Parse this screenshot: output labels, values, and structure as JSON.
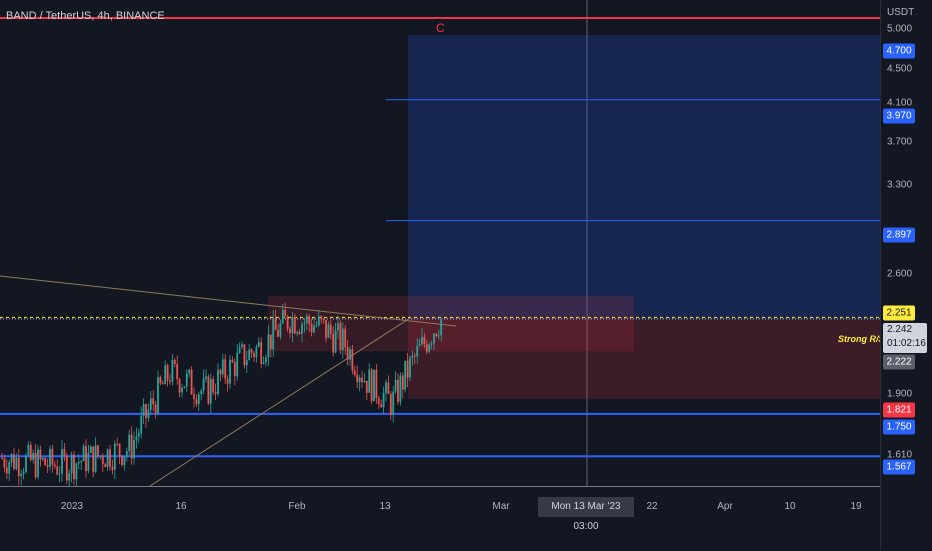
{
  "header": {
    "symbol_title": "BAND / TetherUS, 4h, BINANCE"
  },
  "annotations": {
    "wave_label": "C",
    "sr_label": "Strong R/S"
  },
  "price_axis": {
    "unit": "USDT",
    "ticks": [
      "5.000",
      "4.500",
      "4.100",
      "3.700",
      "3.300",
      "2.600",
      "1.900",
      "1.610"
    ],
    "badges": {
      "tp3": "4.700",
      "tp2": "3.970",
      "tp1": "2.897",
      "entry_level": "2.251",
      "alt_level": "2.222",
      "stop_level": "1.821",
      "support_1": "1.750",
      "support_2": "1.567"
    },
    "current_price": "2.242",
    "countdown": "01:02:16"
  },
  "time_axis": {
    "labels": [
      "2023",
      "16",
      "Feb",
      "13",
      "Mar",
      "22",
      "Apr",
      "10",
      "19"
    ],
    "crosshair_label": "Mon 13 Mar '23   03:00"
  },
  "colors": {
    "background": "#131722",
    "up": "#26a69a",
    "down": "#ef5350",
    "accent_blue": "#2962ff",
    "accent_red": "#f23645",
    "accent_yellow": "#ffeb3b"
  },
  "chart_data": {
    "type": "candlestick",
    "symbol": "BAND/USDT",
    "timeframe": "4h",
    "exchange": "BINANCE",
    "y_scale": "log",
    "ylim": [
      1.45,
      5.15
    ],
    "levels": {
      "red_horizontal": 5.13,
      "target_3": 4.7,
      "target_2": 3.97,
      "target_1": 2.897,
      "entry": 2.251,
      "last_price": 2.242,
      "alt": 2.222,
      "stop": 1.821,
      "support_1": 1.75,
      "support_2": 1.567
    },
    "trend_approx": [
      {
        "t": "early Jan",
        "price": 1.55
      },
      {
        "t": "mid Jan",
        "price": 1.95
      },
      {
        "t": "late Jan",
        "price": 2.25
      },
      {
        "t": "early Feb",
        "price": 2.15
      },
      {
        "t": "13 Feb",
        "price": 1.8
      },
      {
        "t": "20 Feb",
        "price": 2.24
      }
    ]
  }
}
